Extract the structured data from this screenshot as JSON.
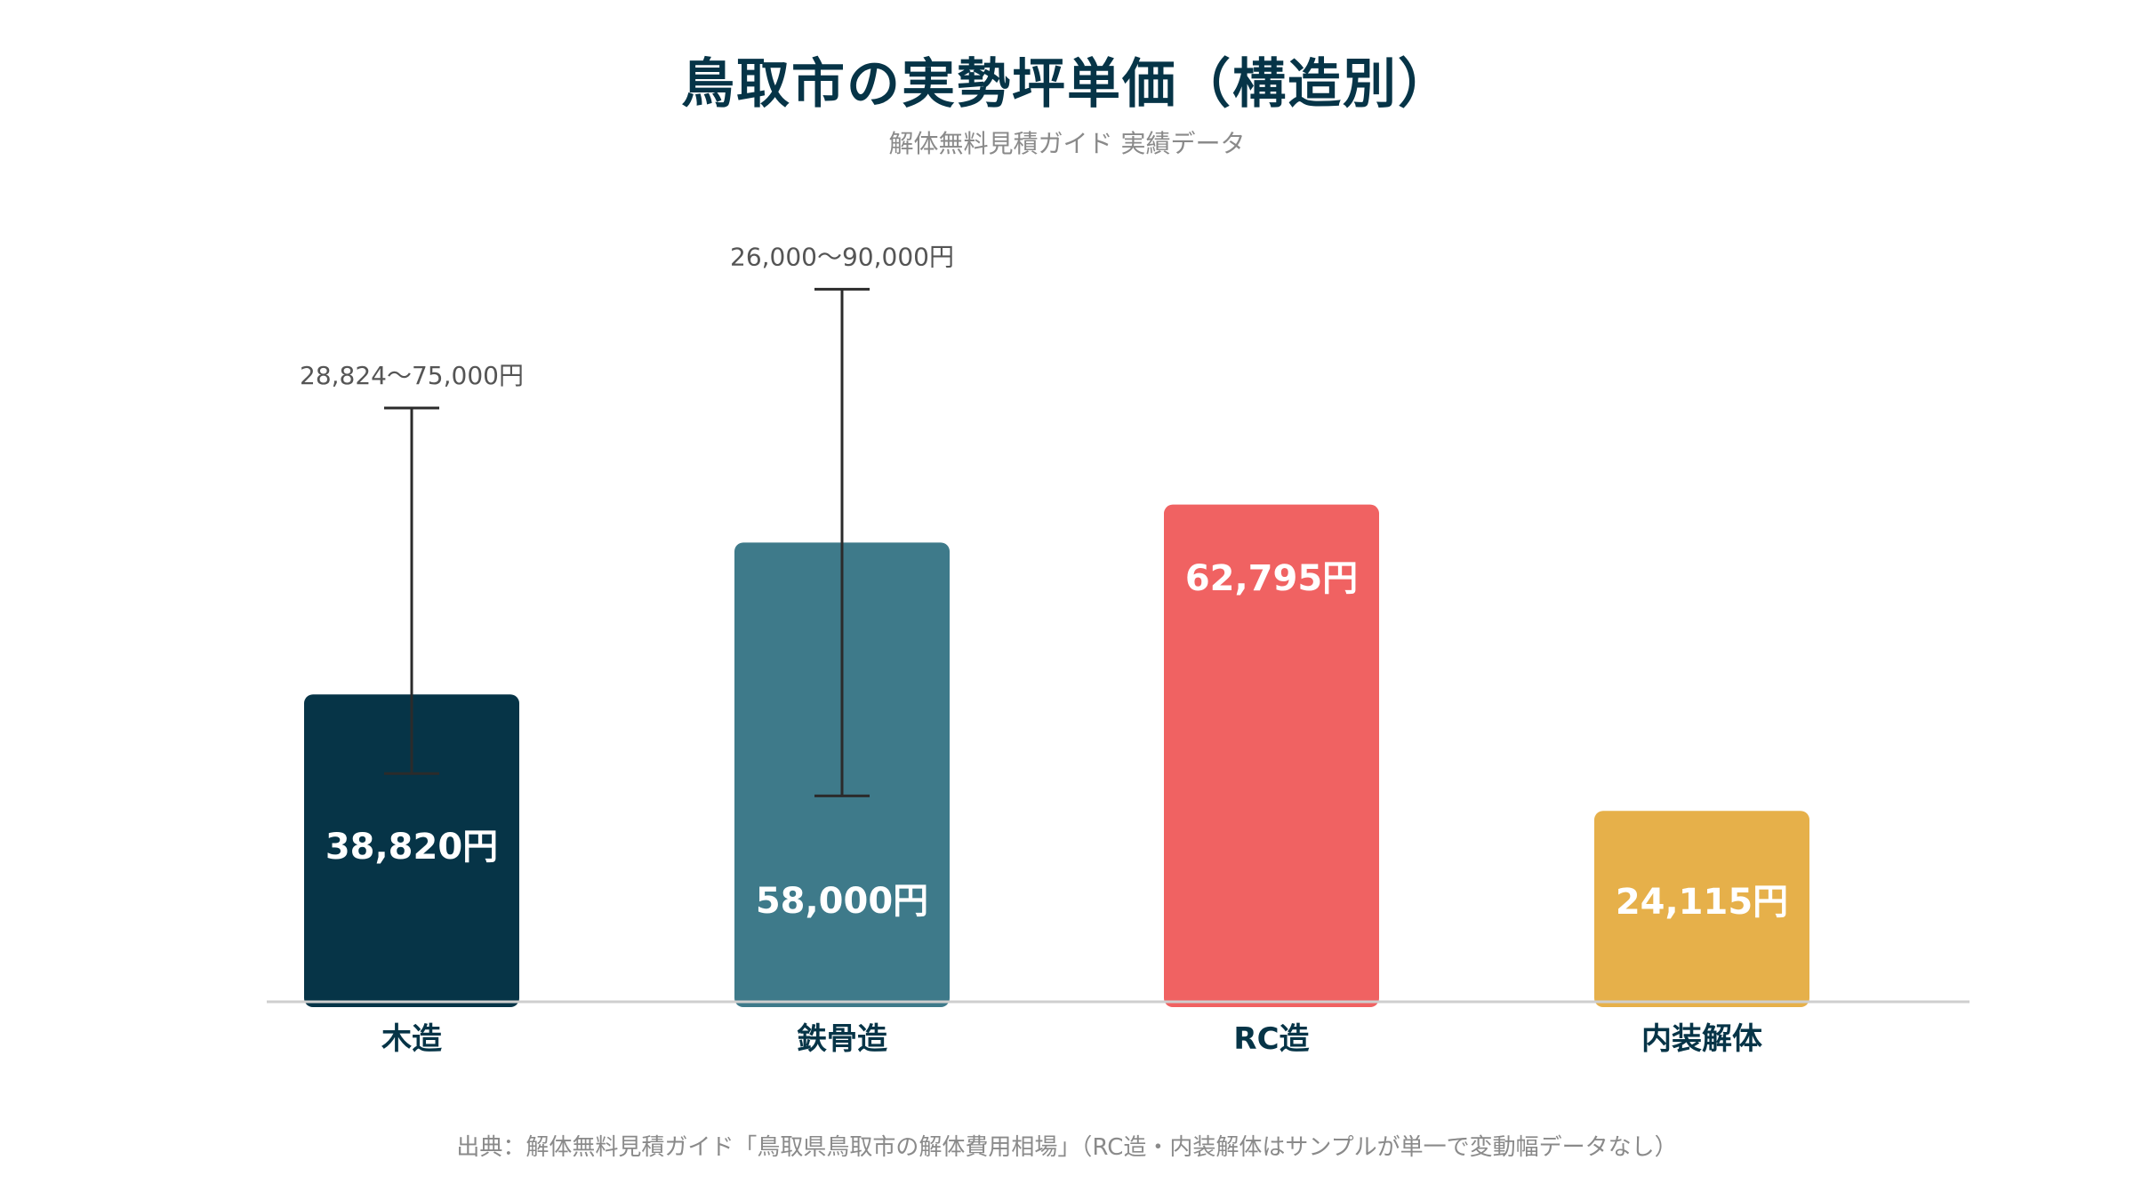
{
  "chart_data": {
    "type": "bar",
    "title": "鳥取市の実勢坪単価（構造別）",
    "subtitle": "解体無料見積ガイド 実績データ",
    "source": "出典：解体無料見積ガイド「鳥取県鳥取市の解体費用相場」（RC造・内装解体はサンプルが単一で変動幅データなし）",
    "categories": [
      "木造",
      "鉄骨造",
      "RC造",
      "内装解体"
    ],
    "values": [
      38820,
      58000,
      62795,
      24115
    ],
    "value_labels": [
      "38,820円",
      "58,000円",
      "62,795円",
      "24,115円"
    ],
    "ranges": [
      [
        28824,
        75000
      ],
      [
        26000,
        90000
      ],
      null,
      null
    ],
    "range_labels": [
      "28,824〜75,000円",
      "26,000〜90,000円",
      "",
      ""
    ],
    "colors": [
      "#063447",
      "#3e7a8a",
      "#f06262",
      "#e6b04a"
    ],
    "ylim": [
      0,
      97000
    ],
    "grid": false
  }
}
